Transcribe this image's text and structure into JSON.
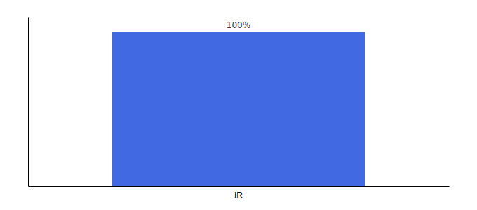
{
  "chart_data": {
    "type": "bar",
    "categories": [
      "IR"
    ],
    "values": [
      100
    ],
    "color": "#4169e1",
    "ylim": [
      0,
      110
    ],
    "data_labels": true,
    "value_labels": [
      "100%"
    ],
    "tick_labels": "x"
  }
}
